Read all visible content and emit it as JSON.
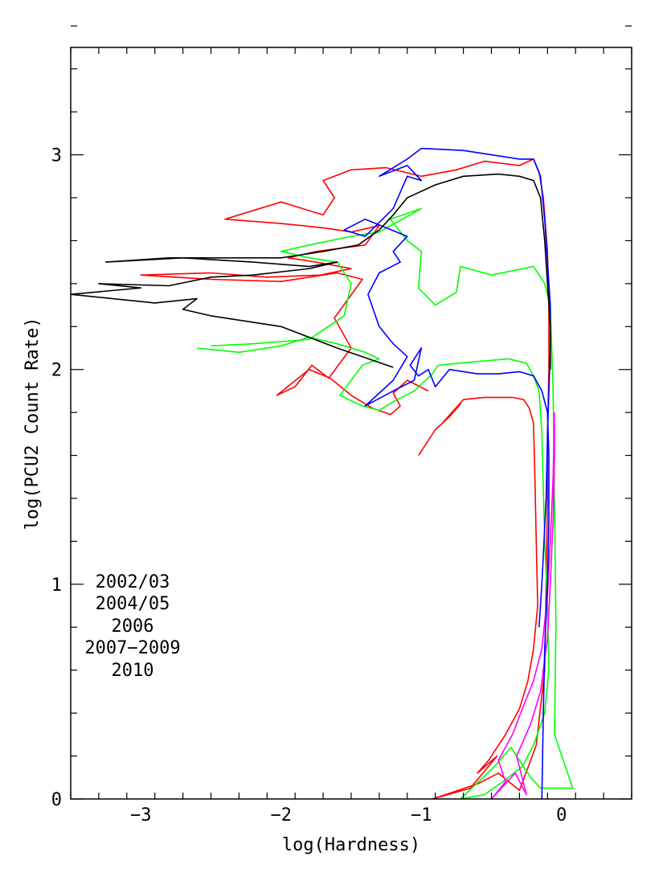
{
  "chart_data": {
    "type": "line",
    "title": "",
    "xlabel": "log(Hardness)",
    "ylabel": "log(PCU2 Count Rate)",
    "xlim": [
      -3.5,
      0.5
    ],
    "ylim": [
      0,
      3.5
    ],
    "x_ticks": [
      -3,
      -2,
      -1,
      0
    ],
    "x_tick_labels": [
      "−3",
      "−2",
      "−1",
      "0"
    ],
    "y_ticks": [
      0,
      1,
      2,
      3
    ],
    "y_tick_labels": [
      "0",
      "1",
      "2",
      "3"
    ],
    "x_minor_step": 0.2,
    "y_minor_step": 0.2,
    "grid": false,
    "legend_position": "lower-left",
    "series": [
      {
        "name": "2002/03",
        "color": "#ff0000",
        "points": [
          [
            -1.02,
            1.6
          ],
          [
            -0.9,
            1.72
          ],
          [
            -0.8,
            1.78
          ],
          [
            -0.72,
            1.84
          ],
          [
            -0.85,
            1.75
          ],
          [
            -0.7,
            1.86
          ],
          [
            -0.55,
            1.87
          ],
          [
            -0.35,
            1.87
          ],
          [
            -0.27,
            1.86
          ],
          [
            -0.23,
            1.82
          ],
          [
            -0.2,
            1.75
          ],
          [
            -0.19,
            1.5
          ],
          [
            -0.18,
            1.2
          ],
          [
            -0.17,
            0.9
          ],
          [
            -0.2,
            0.7
          ],
          [
            -0.24,
            0.55
          ],
          [
            -0.3,
            0.42
          ],
          [
            -0.4,
            0.3
          ],
          [
            -0.52,
            0.18
          ],
          [
            -0.6,
            0.12
          ],
          [
            -0.46,
            0.2
          ],
          [
            -0.65,
            0.05
          ],
          [
            -0.92,
            0.0
          ],
          [
            -0.6,
            0.07
          ],
          [
            -0.45,
            0.12
          ],
          [
            -0.3,
            0.04
          ],
          [
            -0.18,
            0.25
          ],
          [
            -0.12,
            0.6
          ],
          [
            -0.11,
            1.0
          ],
          [
            -0.1,
            1.4
          ],
          [
            -0.1,
            1.7
          ],
          [
            -0.09,
            2.0
          ],
          [
            -0.09,
            2.3
          ],
          [
            -0.1,
            2.55
          ],
          [
            -0.13,
            2.8
          ],
          [
            -0.16,
            2.92
          ],
          [
            -0.2,
            2.98
          ],
          [
            -0.3,
            2.95
          ],
          [
            -0.55,
            2.97
          ],
          [
            -0.75,
            2.93
          ],
          [
            -1.0,
            2.9
          ],
          [
            -1.25,
            2.94
          ],
          [
            -1.5,
            2.93
          ],
          [
            -1.7,
            2.88
          ],
          [
            -1.62,
            2.8
          ],
          [
            -1.7,
            2.72
          ],
          [
            -2.0,
            2.78
          ],
          [
            -2.4,
            2.7
          ],
          [
            -2.0,
            2.68
          ],
          [
            -1.7,
            2.66
          ],
          [
            -1.5,
            2.64
          ],
          [
            -1.3,
            2.67
          ],
          [
            -1.4,
            2.58
          ],
          [
            -1.75,
            2.55
          ],
          [
            -1.95,
            2.52
          ],
          [
            -1.75,
            2.5
          ],
          [
            -1.5,
            2.47
          ],
          [
            -1.72,
            2.44
          ],
          [
            -2.1,
            2.43
          ],
          [
            -2.5,
            2.45
          ],
          [
            -3.0,
            2.44
          ],
          [
            -2.5,
            2.42
          ],
          [
            -2.0,
            2.41
          ],
          [
            -1.6,
            2.45
          ],
          [
            -1.42,
            2.42
          ],
          [
            -1.62,
            2.24
          ],
          [
            -1.5,
            2.1
          ],
          [
            -1.66,
            1.96
          ],
          [
            -1.78,
            2.02
          ],
          [
            -1.9,
            1.92
          ],
          [
            -2.03,
            1.88
          ],
          [
            -1.8,
            2.0
          ],
          [
            -1.65,
            1.96
          ],
          [
            -1.5,
            1.88
          ],
          [
            -1.35,
            1.82
          ],
          [
            -1.22,
            1.79
          ],
          [
            -1.15,
            1.83
          ],
          [
            -1.2,
            1.89
          ],
          [
            -1.1,
            1.95
          ],
          [
            -0.95,
            1.9
          ]
        ]
      },
      {
        "name": "2004/05",
        "color": "#00ff00",
        "points": [
          [
            -2.6,
            2.1
          ],
          [
            -2.3,
            2.08
          ],
          [
            -2.0,
            2.11
          ],
          [
            -1.8,
            2.15
          ],
          [
            -1.6,
            2.12
          ],
          [
            -1.4,
            2.08
          ],
          [
            -1.3,
            2.05
          ],
          [
            -1.42,
            2.02
          ],
          [
            -1.58,
            1.88
          ],
          [
            -1.42,
            1.83
          ],
          [
            -1.3,
            1.81
          ],
          [
            -1.2,
            1.85
          ],
          [
            -1.05,
            1.9
          ],
          [
            -0.92,
            1.98
          ],
          [
            -0.88,
            2.02
          ],
          [
            -0.72,
            2.03
          ],
          [
            -0.55,
            2.04
          ],
          [
            -0.38,
            2.05
          ],
          [
            -0.25,
            2.03
          ],
          [
            -0.2,
            1.97
          ],
          [
            -0.16,
            1.9
          ],
          [
            -0.14,
            1.7
          ],
          [
            -0.12,
            1.2
          ],
          [
            -0.1,
            0.9
          ],
          [
            -0.09,
            0.6
          ],
          [
            -0.12,
            0.4
          ],
          [
            -0.2,
            0.25
          ],
          [
            -0.28,
            0.15
          ],
          [
            -0.42,
            0.08
          ],
          [
            -0.55,
            0.02
          ],
          [
            -0.72,
            0.0
          ],
          [
            -0.48,
            0.15
          ],
          [
            -0.36,
            0.24
          ],
          [
            -0.22,
            0.1
          ],
          [
            -0.15,
            0.05
          ],
          [
            0.08,
            0.05
          ],
          [
            -0.05,
            0.3
          ],
          [
            -0.04,
            0.8
          ],
          [
            -0.05,
            1.4
          ],
          [
            -0.06,
            1.9
          ],
          [
            -0.08,
            2.3
          ],
          [
            -0.12,
            2.4
          ],
          [
            -0.2,
            2.48
          ],
          [
            -0.5,
            2.44
          ],
          [
            -0.72,
            2.48
          ],
          [
            -0.75,
            2.36
          ],
          [
            -0.9,
            2.3
          ],
          [
            -1.02,
            2.38
          ],
          [
            -1.0,
            2.55
          ],
          [
            -1.1,
            2.6
          ],
          [
            -1.22,
            2.7
          ],
          [
            -1.0,
            2.75
          ],
          [
            -1.3,
            2.64
          ],
          [
            -1.5,
            2.62
          ],
          [
            -1.8,
            2.58
          ],
          [
            -2.0,
            2.55
          ],
          [
            -1.8,
            2.52
          ],
          [
            -1.6,
            2.5
          ],
          [
            -1.5,
            2.4
          ],
          [
            -1.55,
            2.25
          ],
          [
            -1.8,
            2.14
          ],
          [
            -2.2,
            2.12
          ],
          [
            -2.5,
            2.11
          ]
        ]
      },
      {
        "name": "2006",
        "color": "#ff00ff",
        "points": [
          [
            -0.05,
            1.8
          ],
          [
            -0.06,
            1.5
          ],
          [
            -0.08,
            1.2
          ],
          [
            -0.1,
            0.95
          ],
          [
            -0.14,
            0.7
          ],
          [
            -0.2,
            0.55
          ],
          [
            -0.28,
            0.42
          ],
          [
            -0.35,
            0.3
          ],
          [
            -0.45,
            0.18
          ],
          [
            -0.4,
            0.08
          ],
          [
            -0.5,
            0.0
          ],
          [
            -0.33,
            0.12
          ],
          [
            -0.25,
            0.02
          ],
          [
            -0.32,
            0.2
          ],
          [
            -0.22,
            0.35
          ],
          [
            -0.15,
            0.5
          ],
          [
            -0.1,
            0.75
          ],
          [
            -0.08,
            1.0
          ],
          [
            -0.06,
            1.3
          ],
          [
            -0.05,
            1.6
          ],
          [
            -0.05,
            1.75
          ]
        ]
      },
      {
        "name": "2007-2009",
        "color": "#0000ff",
        "points": [
          [
            -0.14,
            0.0
          ],
          [
            -0.13,
            0.4
          ],
          [
            -0.12,
            0.7
          ],
          [
            -0.1,
            1.0
          ],
          [
            -0.09,
            1.3
          ],
          [
            -0.09,
            1.6
          ],
          [
            -0.1,
            1.8
          ],
          [
            -0.14,
            1.9
          ],
          [
            -0.2,
            1.97
          ],
          [
            -0.3,
            1.99
          ],
          [
            -0.45,
            1.98
          ],
          [
            -0.6,
            1.98
          ],
          [
            -0.8,
            2.0
          ],
          [
            -0.9,
            1.92
          ],
          [
            -0.95,
            2.0
          ],
          [
            -1.02,
            1.97
          ],
          [
            -1.08,
            2.02
          ],
          [
            -1.0,
            2.1
          ],
          [
            -1.05,
            1.95
          ],
          [
            -1.2,
            1.9
          ],
          [
            -1.4,
            1.83
          ],
          [
            -1.2,
            1.95
          ],
          [
            -1.1,
            2.06
          ],
          [
            -1.2,
            2.12
          ],
          [
            -1.3,
            2.2
          ],
          [
            -1.38,
            2.35
          ],
          [
            -1.3,
            2.45
          ],
          [
            -1.15,
            2.5
          ],
          [
            -1.2,
            2.55
          ],
          [
            -1.1,
            2.62
          ],
          [
            -1.25,
            2.66
          ],
          [
            -1.4,
            2.7
          ],
          [
            -1.55,
            2.65
          ],
          [
            -1.4,
            2.62
          ],
          [
            -1.2,
            2.75
          ],
          [
            -1.1,
            2.9
          ],
          [
            -1.0,
            2.88
          ],
          [
            -1.1,
            2.95
          ],
          [
            -1.3,
            2.9
          ],
          [
            -1.1,
            2.98
          ],
          [
            -1.0,
            3.03
          ],
          [
            -0.7,
            3.02
          ],
          [
            -0.5,
            3.0
          ],
          [
            -0.3,
            2.98
          ],
          [
            -0.2,
            2.98
          ],
          [
            -0.15,
            2.9
          ],
          [
            -0.12,
            2.7
          ],
          [
            -0.1,
            2.5
          ],
          [
            -0.08,
            2.3
          ],
          [
            -0.08,
            2.1
          ],
          [
            -0.1,
            1.7
          ],
          [
            -0.11,
            1.4
          ],
          [
            -0.14,
            1.0
          ],
          [
            -0.16,
            0.8
          ]
        ]
      },
      {
        "name": "2010",
        "color": "#000000",
        "points": [
          [
            -1.2,
            2.01
          ],
          [
            -1.6,
            2.1
          ],
          [
            -2.0,
            2.2
          ],
          [
            -2.5,
            2.25
          ],
          [
            -2.7,
            2.28
          ],
          [
            -2.6,
            2.33
          ],
          [
            -2.9,
            2.31
          ],
          [
            -3.5,
            2.35
          ],
          [
            -3.0,
            2.38
          ],
          [
            -3.3,
            2.4
          ],
          [
            -2.8,
            2.39
          ],
          [
            -2.5,
            2.43
          ],
          [
            -2.2,
            2.44
          ],
          [
            -1.8,
            2.47
          ],
          [
            -1.6,
            2.5
          ],
          [
            -1.8,
            2.48
          ],
          [
            -2.2,
            2.5
          ],
          [
            -2.7,
            2.52
          ],
          [
            -3.25,
            2.5
          ],
          [
            -2.8,
            2.52
          ],
          [
            -2.5,
            2.52
          ],
          [
            -2.0,
            2.52
          ],
          [
            -1.7,
            2.55
          ],
          [
            -1.45,
            2.58
          ],
          [
            -1.3,
            2.65
          ],
          [
            -1.2,
            2.72
          ],
          [
            -1.1,
            2.8
          ],
          [
            -0.9,
            2.86
          ],
          [
            -0.7,
            2.9
          ],
          [
            -0.45,
            2.91
          ],
          [
            -0.3,
            2.9
          ],
          [
            -0.2,
            2.88
          ],
          [
            -0.15,
            2.8
          ],
          [
            -0.12,
            2.6
          ],
          [
            -0.1,
            2.4
          ],
          [
            -0.08,
            2.2
          ],
          [
            -0.08,
            2.0
          ]
        ]
      }
    ]
  },
  "legend": [
    {
      "label": "2002/03",
      "color": "#ff0000"
    },
    {
      "label": "2004/05",
      "color": "#00ff00"
    },
    {
      "label": "2006",
      "color": "#ff00ff"
    },
    {
      "label": "2007−2009",
      "color": "#0000ff"
    },
    {
      "label": "2010",
      "color": "#000000"
    }
  ]
}
